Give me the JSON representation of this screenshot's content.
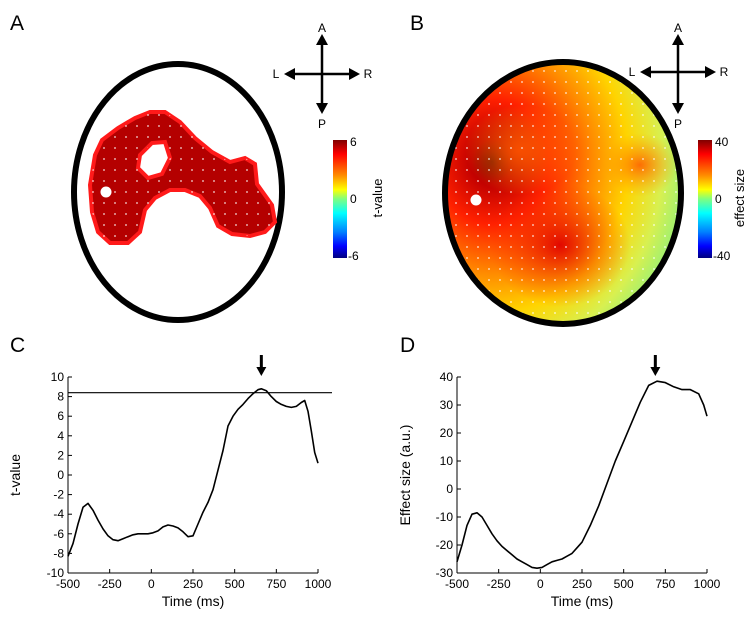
{
  "panels": {
    "A": {
      "letter": "A",
      "colorbar": {
        "label": "t-value",
        "ticks": [
          "6",
          "0",
          "-6"
        ]
      },
      "compass": {
        "anterior": "A",
        "posterior": "P",
        "left": "L",
        "right": "R"
      }
    },
    "B": {
      "letter": "B",
      "colorbar": {
        "label": "effect size",
        "ticks": [
          "40",
          "0",
          "-40"
        ]
      },
      "compass": {
        "anterior": "A",
        "posterior": "P",
        "left": "L",
        "right": "R"
      }
    },
    "C": {
      "letter": "C"
    },
    "D": {
      "letter": "D"
    }
  },
  "chart_data": [
    {
      "panel": "C",
      "type": "line",
      "xlabel": "Time (ms)",
      "ylabel": "t-value",
      "xlim": [
        -500,
        1000
      ],
      "ylim": [
        -10,
        10
      ],
      "xticks": [
        -500,
        -250,
        0,
        250,
        500,
        750,
        1000
      ],
      "yticks": [
        -10,
        -8,
        -6,
        -4,
        -2,
        0,
        2,
        4,
        6,
        8,
        10
      ],
      "threshold": 8.4,
      "peak_marker_x": 660,
      "series": [
        {
          "x": [
            -500,
            -470,
            -440,
            -410,
            -380,
            -350,
            -320,
            -290,
            -260,
            -230,
            -200,
            -170,
            -140,
            -110,
            -80,
            -50,
            -20,
            10,
            40,
            70,
            100,
            130,
            160,
            190,
            220,
            250,
            280,
            310,
            340,
            370,
            400,
            430,
            460,
            490,
            520,
            550,
            580,
            610,
            640,
            660,
            690,
            720,
            750,
            780,
            810,
            840,
            870,
            900,
            920,
            940,
            960,
            980,
            1000
          ],
          "y": [
            -8.3,
            -7.0,
            -5.0,
            -3.3,
            -2.9,
            -3.6,
            -4.6,
            -5.5,
            -6.2,
            -6.6,
            -6.7,
            -6.5,
            -6.3,
            -6.1,
            -6.0,
            -6.0,
            -6.0,
            -5.9,
            -5.7,
            -5.3,
            -5.1,
            -5.2,
            -5.4,
            -5.8,
            -6.3,
            -6.2,
            -5.0,
            -3.8,
            -2.8,
            -1.5,
            0.5,
            2.5,
            5.0,
            6.0,
            6.7,
            7.2,
            7.8,
            8.3,
            8.7,
            8.8,
            8.6,
            8.0,
            7.5,
            7.2,
            7.0,
            6.9,
            7.0,
            7.4,
            7.6,
            6.5,
            4.5,
            2.3,
            1.2
          ]
        }
      ]
    },
    {
      "panel": "D",
      "type": "line",
      "xlabel": "Time (ms)",
      "ylabel": "Effect size (a.u.)",
      "xlim": [
        -500,
        1000
      ],
      "ylim": [
        -30,
        40
      ],
      "xticks": [
        -500,
        -250,
        0,
        250,
        500,
        750,
        1000
      ],
      "yticks": [
        -30,
        -20,
        -10,
        0,
        10,
        20,
        30,
        40
      ],
      "peak_marker_x": 690,
      "series": [
        {
          "x": [
            -500,
            -470,
            -440,
            -410,
            -380,
            -350,
            -320,
            -290,
            -260,
            -230,
            -200,
            -170,
            -140,
            -110,
            -80,
            -50,
            -20,
            10,
            40,
            70,
            100,
            130,
            160,
            190,
            220,
            250,
            300,
            350,
            400,
            450,
            500,
            550,
            600,
            650,
            700,
            750,
            800,
            850,
            900,
            950,
            980,
            1000
          ],
          "y": [
            -26,
            -20,
            -13,
            -9,
            -8.5,
            -10,
            -13,
            -16,
            -18.5,
            -20.5,
            -22,
            -23.5,
            -25,
            -26,
            -27,
            -28,
            -28.3,
            -28,
            -27,
            -26,
            -25.5,
            -25,
            -24,
            -23,
            -21,
            -19,
            -13,
            -6,
            2,
            10,
            17,
            24,
            31,
            37,
            38.5,
            38,
            36.5,
            35.5,
            35.5,
            34,
            30,
            26
          ]
        }
      ]
    }
  ]
}
